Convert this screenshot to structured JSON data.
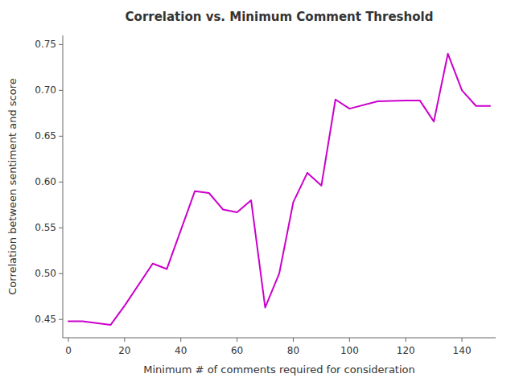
{
  "chart_data": {
    "type": "line",
    "title": "Correlation vs. Minimum Comment Threshold",
    "xlabel": "Minimum # of comments required for consideration",
    "ylabel": "Correlation between sentiment and score",
    "x": [
      0,
      5,
      15,
      20,
      30,
      35,
      45,
      50,
      55,
      60,
      65,
      70,
      75,
      80,
      85,
      90,
      95,
      100,
      110,
      120,
      125,
      130,
      135,
      140,
      145,
      150
    ],
    "values": [
      0.448,
      0.448,
      0.444,
      0.465,
      0.511,
      0.505,
      0.59,
      0.588,
      0.57,
      0.567,
      0.58,
      0.463,
      0.5,
      0.578,
      0.61,
      0.596,
      0.69,
      0.68,
      0.688,
      0.689,
      0.689,
      0.666,
      0.74,
      0.7,
      0.683,
      0.683
    ],
    "color": "#cc00cc",
    "xlim": [
      -2,
      152
    ],
    "ylim": [
      0.43,
      0.76
    ],
    "xticks": [
      0,
      20,
      40,
      60,
      80,
      100,
      120,
      140
    ],
    "yticks": [
      0.45,
      {
        "value": 0.5,
        "label": "0.50"
      },
      0.55,
      {
        "value": 0.6,
        "label": "0.60"
      },
      0.65,
      {
        "value": 0.7,
        "label": "0.70"
      },
      0.75
    ],
    "grid": false
  }
}
